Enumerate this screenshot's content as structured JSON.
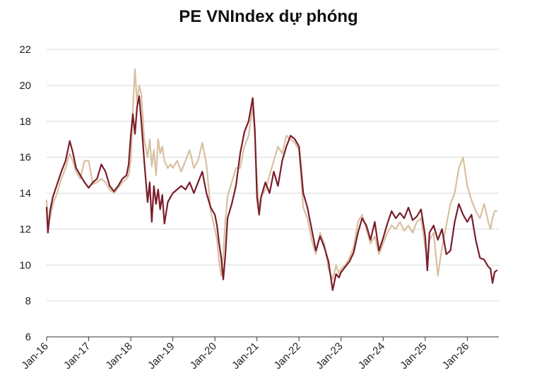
{
  "chart_data": {
    "type": "line",
    "title": "PE VNIndex dự phóng",
    "xlabel": "",
    "ylabel": "",
    "ylim": [
      6,
      22
    ],
    "yticks": [
      6,
      8,
      10,
      12,
      14,
      16,
      18,
      20,
      22
    ],
    "xticks": [
      "Jan-16",
      "Jan-17",
      "Jan-18",
      "Jan-19",
      "Jan-20",
      "Jan-21",
      "Jan-22",
      "Jan-23",
      "Jan-24",
      "Jan-25",
      "Jan-26"
    ],
    "xlim": [
      2016.0,
      2026.75
    ],
    "grid": "horizontal",
    "legend": "none",
    "colors": {
      "series_1": "#7b1c2a",
      "series_2": "#d8c0a0",
      "grid": "#d9d9d9"
    },
    "series": [
      {
        "color": "#7b1c2a",
        "x": [
          2016.0,
          2016.03,
          2016.08,
          2016.15,
          2016.25,
          2016.35,
          2016.45,
          2016.55,
          2016.62,
          2016.7,
          2016.8,
          2016.9,
          2017.0,
          2017.1,
          2017.2,
          2017.3,
          2017.4,
          2017.5,
          2017.6,
          2017.7,
          2017.8,
          2017.9,
          2017.95,
          2018.0,
          2018.05,
          2018.1,
          2018.15,
          2018.2,
          2018.25,
          2018.32,
          2018.4,
          2018.45,
          2018.5,
          2018.55,
          2018.6,
          2018.65,
          2018.7,
          2018.75,
          2018.8,
          2018.88,
          2018.95,
          2019.0,
          2019.1,
          2019.2,
          2019.3,
          2019.4,
          2019.5,
          2019.6,
          2019.7,
          2019.8,
          2019.9,
          2020.0,
          2020.05,
          2020.1,
          2020.15,
          2020.2,
          2020.25,
          2020.3,
          2020.4,
          2020.5,
          2020.6,
          2020.7,
          2020.8,
          2020.9,
          2020.95,
          2021.0,
          2021.05,
          2021.1,
          2021.2,
          2021.3,
          2021.4,
          2021.5,
          2021.6,
          2021.7,
          2021.8,
          2021.9,
          2022.0,
          2022.1,
          2022.2,
          2022.3,
          2022.4,
          2022.5,
          2022.6,
          2022.7,
          2022.8,
          2022.88,
          2022.95,
          2023.0,
          2023.1,
          2023.2,
          2023.3,
          2023.4,
          2023.5,
          2023.6,
          2023.7,
          2023.8,
          2023.9,
          2024.0,
          2024.1,
          2024.2,
          2024.3,
          2024.4,
          2024.5,
          2024.6,
          2024.7,
          2024.8,
          2024.9,
          2025.0,
          2025.05,
          2025.1,
          2025.2,
          2025.3,
          2025.4,
          2025.5,
          2025.6,
          2025.7,
          2025.8,
          2025.9,
          2026.0,
          2026.1,
          2026.2,
          2026.3,
          2026.4,
          2026.5,
          2026.55,
          2026.6,
          2026.65,
          2026.7
        ],
        "y": [
          13.2,
          11.8,
          13.0,
          13.8,
          14.5,
          15.2,
          15.8,
          16.9,
          16.3,
          15.4,
          15.0,
          14.6,
          14.3,
          14.6,
          14.8,
          15.6,
          15.2,
          14.4,
          14.1,
          14.4,
          14.8,
          15.0,
          15.6,
          17.2,
          18.4,
          17.3,
          18.8,
          19.4,
          18.0,
          15.8,
          13.5,
          14.6,
          12.4,
          14.4,
          13.4,
          14.2,
          13.1,
          13.9,
          12.3,
          13.5,
          13.8,
          14.0,
          14.2,
          14.4,
          14.2,
          14.6,
          14.0,
          14.6,
          15.2,
          14.0,
          13.2,
          12.8,
          12.2,
          11.2,
          10.4,
          9.2,
          10.6,
          12.6,
          13.4,
          14.4,
          16.2,
          17.4,
          18.0,
          19.3,
          17.5,
          13.8,
          12.8,
          13.8,
          14.6,
          14.0,
          15.2,
          14.4,
          15.8,
          16.6,
          17.2,
          17.0,
          16.6,
          14.0,
          13.2,
          12.0,
          10.8,
          11.6,
          11.0,
          10.2,
          8.6,
          9.5,
          9.3,
          9.6,
          9.9,
          10.2,
          10.7,
          11.8,
          12.6,
          12.2,
          11.4,
          12.4,
          10.8,
          11.5,
          12.3,
          13.0,
          12.6,
          12.9,
          12.6,
          13.2,
          12.5,
          12.7,
          13.1,
          11.6,
          9.7,
          11.8,
          12.2,
          11.4,
          12.0,
          10.6,
          10.8,
          12.4,
          13.4,
          12.8,
          12.4,
          12.8,
          11.4,
          10.4,
          10.3,
          9.9,
          9.8,
          9.0,
          9.6,
          9.7
        ]
      },
      {
        "color": "#d8c0a0",
        "x": [
          2016.0,
          2016.03,
          2016.08,
          2016.15,
          2016.25,
          2016.35,
          2016.45,
          2016.55,
          2016.62,
          2016.7,
          2016.8,
          2016.9,
          2017.0,
          2017.1,
          2017.2,
          2017.3,
          2017.4,
          2017.5,
          2017.6,
          2017.7,
          2017.8,
          2017.9,
          2017.95,
          2018.0,
          2018.05,
          2018.1,
          2018.15,
          2018.2,
          2018.25,
          2018.32,
          2018.4,
          2018.45,
          2018.5,
          2018.55,
          2018.6,
          2018.65,
          2018.7,
          2018.75,
          2018.8,
          2018.88,
          2018.95,
          2019.0,
          2019.1,
          2019.2,
          2019.3,
          2019.4,
          2019.5,
          2019.6,
          2019.7,
          2019.8,
          2019.9,
          2020.0,
          2020.05,
          2020.1,
          2020.15,
          2020.2,
          2020.25,
          2020.3,
          2020.4,
          2020.5,
          2020.6,
          2020.7,
          2020.8,
          2020.9,
          2020.95,
          2021.0,
          2021.05,
          2021.1,
          2021.2,
          2021.3,
          2021.4,
          2021.5,
          2021.6,
          2021.7,
          2021.8,
          2021.9,
          2022.0,
          2022.1,
          2022.2,
          2022.3,
          2022.4,
          2022.5,
          2022.6,
          2022.7,
          2022.8,
          2022.88,
          2022.95,
          2023.0,
          2023.1,
          2023.2,
          2023.3,
          2023.4,
          2023.5,
          2023.6,
          2023.7,
          2023.8,
          2023.9,
          2024.0,
          2024.1,
          2024.2,
          2024.3,
          2024.4,
          2024.5,
          2024.6,
          2024.7,
          2024.8,
          2024.9,
          2025.0,
          2025.05,
          2025.1,
          2025.2,
          2025.3,
          2025.4,
          2025.5,
          2025.6,
          2025.7,
          2025.8,
          2025.9,
          2026.0,
          2026.1,
          2026.2,
          2026.3,
          2026.4,
          2026.5,
          2026.55,
          2026.6,
          2026.65,
          2026.7
        ],
        "y": [
          13.6,
          12.2,
          12.6,
          13.4,
          14.0,
          14.8,
          15.4,
          16.2,
          15.8,
          15.2,
          14.8,
          15.8,
          15.8,
          14.5,
          14.6,
          14.8,
          14.6,
          14.2,
          14.0,
          14.3,
          14.6,
          14.8,
          15.0,
          15.8,
          18.6,
          20.9,
          19.0,
          20.0,
          19.5,
          17.0,
          16.0,
          17.0,
          15.5,
          16.4,
          15.0,
          17.0,
          16.2,
          16.6,
          15.8,
          15.4,
          15.6,
          15.4,
          15.8,
          15.2,
          15.8,
          16.4,
          15.4,
          15.8,
          16.8,
          15.6,
          13.0,
          12.0,
          11.4,
          10.2,
          9.4,
          10.6,
          12.5,
          13.8,
          14.6,
          15.4,
          15.4,
          16.6,
          17.2,
          18.8,
          17.2,
          14.6,
          13.2,
          13.8,
          14.2,
          15.0,
          15.8,
          16.6,
          16.2,
          17.2,
          17.0,
          16.8,
          16.4,
          13.2,
          12.6,
          11.4,
          10.6,
          11.8,
          11.2,
          9.8,
          9.2,
          10.0,
          9.5,
          9.8,
          10.0,
          10.4,
          11.0,
          12.4,
          12.8,
          12.0,
          11.2,
          11.6,
          10.6,
          11.2,
          11.8,
          12.2,
          12.0,
          12.4,
          11.9,
          12.2,
          11.8,
          12.4,
          12.6,
          11.0,
          10.4,
          11.4,
          11.8,
          9.4,
          11.0,
          12.2,
          13.4,
          14.0,
          15.4,
          16.0,
          14.4,
          13.6,
          13.0,
          12.6,
          13.4,
          12.4,
          12.0,
          12.6,
          13.0,
          13.0
        ]
      }
    ]
  }
}
